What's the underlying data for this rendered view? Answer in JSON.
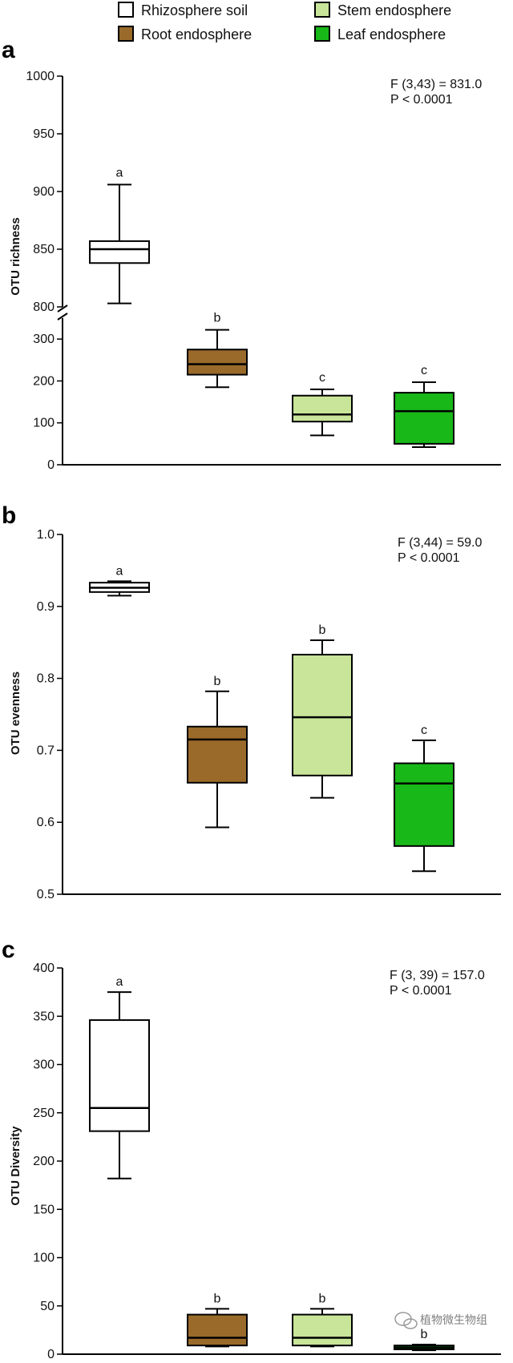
{
  "legend": [
    {
      "label": "Rhizosphere soil",
      "color": "#ffffff"
    },
    {
      "label": "Stem endosphere",
      "color": "#c9e59a"
    },
    {
      "label": "Root endosphere",
      "color": "#9a6a2a"
    },
    {
      "label": "Leaf endosphere",
      "color": "#19b819"
    }
  ],
  "watermark": "植物微生物组",
  "chart_data": [
    {
      "type": "box",
      "panel": "a",
      "ylabel": "OTU richness",
      "stat_lines": [
        "F (3,43) = 831.0",
        "P < 0.0001"
      ],
      "axis_break": true,
      "ylim_lower": [
        0,
        350
      ],
      "ylim_upper": [
        800,
        1000
      ],
      "yticks_lower": [
        0,
        100,
        200,
        300
      ],
      "yticks_upper": [
        800,
        850,
        900,
        950,
        1000
      ],
      "series": [
        {
          "name": "Rhizosphere soil",
          "min": 803,
          "q1": 838,
          "median": 850,
          "q3": 857,
          "max": 906,
          "letter": "a"
        },
        {
          "name": "Root endosphere",
          "min": 185,
          "q1": 215,
          "median": 240,
          "q3": 275,
          "max": 322,
          "letter": "b"
        },
        {
          "name": "Stem endosphere",
          "min": 70,
          "q1": 103,
          "median": 120,
          "q3": 165,
          "max": 180,
          "letter": "c"
        },
        {
          "name": "Leaf endosphere",
          "min": 42,
          "q1": 50,
          "median": 128,
          "q3": 172,
          "max": 197,
          "letter": "c"
        }
      ]
    },
    {
      "type": "box",
      "panel": "b",
      "ylabel": "OTU evenness",
      "stat_lines": [
        "F (3,44) = 59.0",
        "P < 0.0001"
      ],
      "ylim": [
        0.5,
        1.0
      ],
      "yticks": [
        "0.5",
        "0.6",
        "0.7",
        "0.8",
        "0.9",
        "1.0"
      ],
      "series": [
        {
          "name": "Rhizosphere soil",
          "min": 0.915,
          "q1": 0.92,
          "median": 0.926,
          "q3": 0.933,
          "max": 0.935,
          "letter": "a"
        },
        {
          "name": "Root endosphere",
          "min": 0.593,
          "q1": 0.655,
          "median": 0.715,
          "q3": 0.733,
          "max": 0.782,
          "letter": "b"
        },
        {
          "name": "Stem endosphere",
          "min": 0.634,
          "q1": 0.665,
          "median": 0.746,
          "q3": 0.833,
          "max": 0.853,
          "letter": "b"
        },
        {
          "name": "Leaf endosphere",
          "min": 0.532,
          "q1": 0.567,
          "median": 0.654,
          "q3": 0.682,
          "max": 0.714,
          "letter": "c"
        }
      ]
    },
    {
      "type": "box",
      "panel": "c",
      "ylabel": "OTU Diversity",
      "stat_lines": [
        "F (3, 39) = 157.0",
        "P < 0.0001"
      ],
      "ylim": [
        0,
        400
      ],
      "yticks": [
        0,
        50,
        100,
        150,
        200,
        250,
        300,
        350,
        400
      ],
      "series": [
        {
          "name": "Rhizosphere soil",
          "min": 182,
          "q1": 231,
          "median": 255,
          "q3": 346,
          "max": 375,
          "letter": "a"
        },
        {
          "name": "Root endosphere",
          "min": 8,
          "q1": 9,
          "median": 17,
          "q3": 41,
          "max": 47,
          "letter": "b"
        },
        {
          "name": "Stem endosphere",
          "min": 8,
          "q1": 9,
          "median": 17,
          "q3": 41,
          "max": 47,
          "letter": "b"
        },
        {
          "name": "Leaf endosphere",
          "min": 4,
          "q1": 5,
          "median": 7,
          "q3": 9,
          "max": 10,
          "letter": "b"
        }
      ]
    }
  ]
}
